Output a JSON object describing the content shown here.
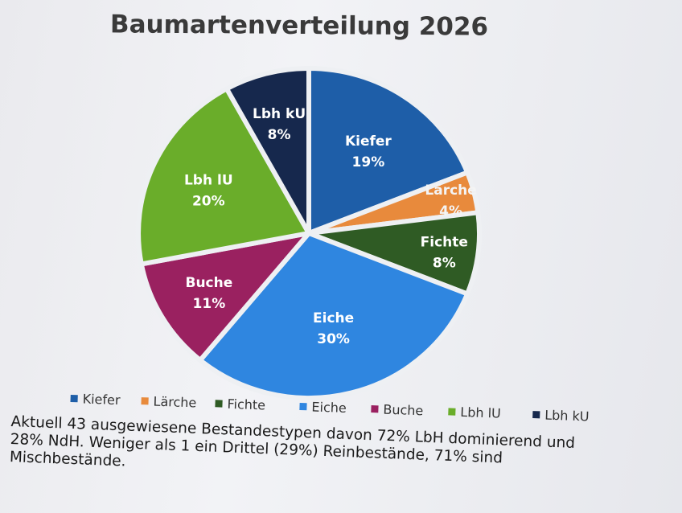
{
  "chart_data": {
    "type": "pie",
    "title": "Baumartenverteilung 2026",
    "slices": [
      {
        "label": "Kiefer",
        "value": 19,
        "value_label": "19%",
        "color": "#1e5ea8",
        "text_color": "#ffffff"
      },
      {
        "label": "Lärche",
        "value": 4,
        "value_label": "4%",
        "color": "#e88a3c",
        "text_color": "#f4f4f4"
      },
      {
        "label": "Fichte",
        "value": 8,
        "value_label": "8%",
        "color": "#2f5b24",
        "text_color": "#ffffff"
      },
      {
        "label": "Eiche",
        "value": 30,
        "value_label": "30%",
        "color": "#2f86e0",
        "text_color": "#ffffff"
      },
      {
        "label": "Buche",
        "value": 11,
        "value_label": "11%",
        "color": "#9a2160",
        "text_color": "#ffffff"
      },
      {
        "label": "Lbh lU",
        "value": 20,
        "value_label": "20%",
        "color": "#6aad2a",
        "text_color": "#ffffff"
      },
      {
        "label": "Lbh kU",
        "value": 8,
        "value_label": "8%",
        "color": "#16284d",
        "text_color": "#ffffff"
      }
    ],
    "legend_position": "bottom"
  },
  "caption": {
    "line1": "Aktuell 43 ausgewiesene Bestandestypen davon 72% LbH dominierend und",
    "line2": "28% NdH. Weniger als 1 ein Drittel (29%) Reinbestände, 71% sind",
    "line3": "Mischbestände."
  }
}
